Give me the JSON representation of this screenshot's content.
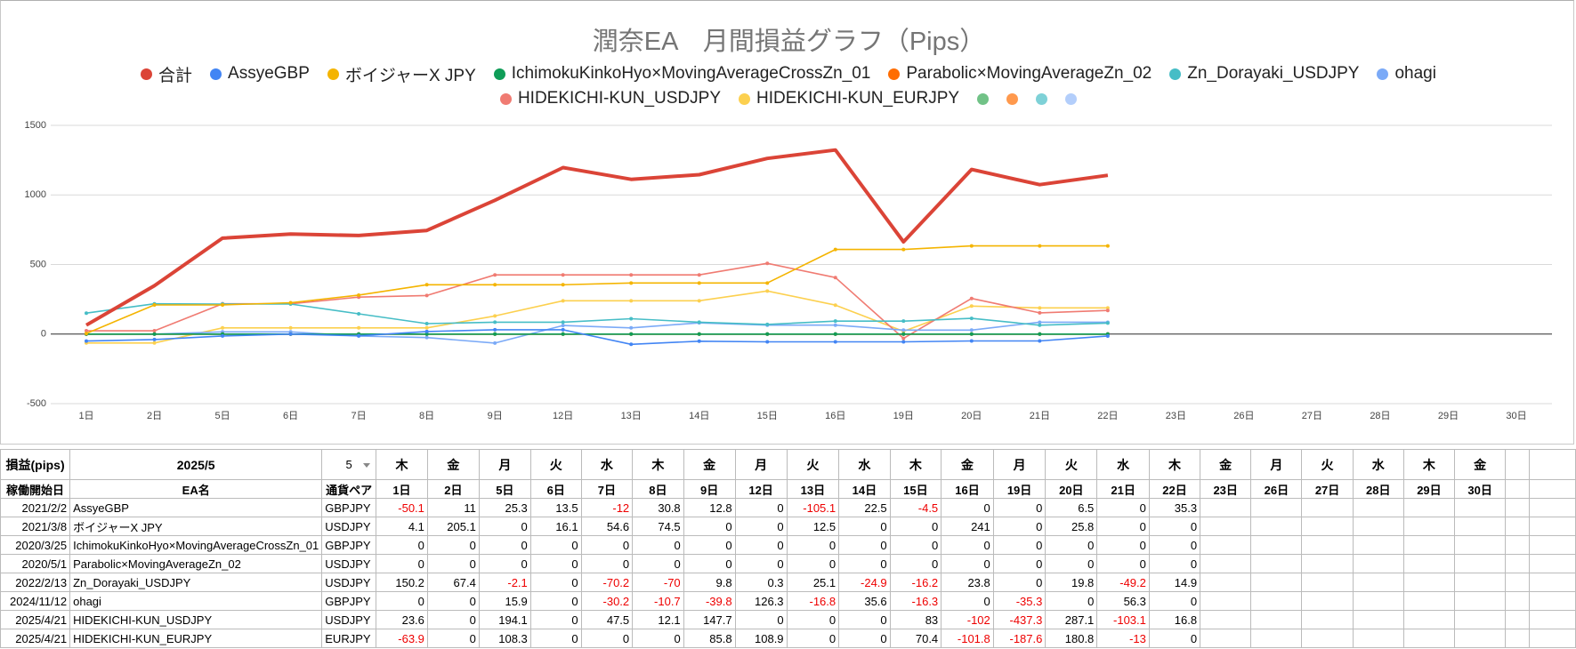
{
  "chart_data": {
    "type": "line",
    "title": "潤奈EA　月間損益グラフ（Pips）",
    "categories": [
      "1日",
      "2日",
      "5日",
      "6日",
      "7日",
      "8日",
      "9日",
      "12日",
      "13日",
      "14日",
      "15日",
      "16日",
      "19日",
      "20日",
      "21日",
      "22日",
      "23日",
      "26日",
      "27日",
      "28日",
      "29日",
      "30日"
    ],
    "ylim": [
      -500,
      1500
    ],
    "yticks": [
      -500,
      0,
      500,
      1000,
      1500
    ],
    "grid": true,
    "series": [
      {
        "name": "合計",
        "color": "#db4437",
        "width": 4,
        "values": [
          63.9,
          347.4,
          688.9,
          718.5,
          708.2,
          744.9,
          961.2,
          1196.7,
          1112.4,
          1145.6,
          1262,
          1323,
          662.8,
          1182.8,
          1073.8,
          1140.8,
          null,
          null,
          null,
          null,
          null,
          null
        ]
      },
      {
        "name": "AssyeGBP",
        "color": "#4285f4",
        "values": [
          -50.1,
          -39.1,
          -13.8,
          -0.3,
          -12.3,
          18.5,
          31.3,
          31.3,
          -73.8,
          -51.3,
          -55.8,
          -55.8,
          -55.8,
          -49.3,
          -49.3,
          -14,
          null,
          null,
          null,
          null,
          null,
          null
        ]
      },
      {
        "name": "ボイジャーX JPY",
        "color": "#f4b400",
        "values": [
          4.1,
          209.2,
          209.2,
          225.3,
          279.9,
          354.4,
          354.4,
          354.4,
          366.9,
          366.9,
          366.9,
          607.9,
          607.9,
          633.7,
          633.7,
          633.7,
          null,
          null,
          null,
          null,
          null,
          null
        ]
      },
      {
        "name": "IchimokuKinkoHyo×MovingAverageCrossZn_01",
        "color": "#0f9d58",
        "values": [
          0,
          0,
          0,
          0,
          0,
          0,
          0,
          0,
          0,
          0,
          0,
          0,
          0,
          0,
          0,
          0,
          null,
          null,
          null,
          null,
          null,
          null
        ]
      },
      {
        "name": "Parabolic×MovingAverageZn_02",
        "color": "#ff6d01",
        "values": [
          0,
          0,
          0,
          0,
          0,
          0,
          0,
          0,
          0,
          0,
          0,
          0,
          0,
          0,
          0,
          0,
          null,
          null,
          null,
          null,
          null,
          null
        ]
      },
      {
        "name": "Zn_Dorayaki_USDJPY",
        "color": "#46bdc6",
        "values": [
          150.2,
          217.6,
          215.5,
          215.5,
          145.3,
          75.3,
          85.1,
          85.4,
          110.5,
          85.6,
          69.4,
          93.2,
          93.2,
          113,
          63.8,
          78.7,
          null,
          null,
          null,
          null,
          null,
          null
        ]
      },
      {
        "name": "ohagi",
        "color": "#7baaf7",
        "values": [
          0,
          0,
          15.9,
          15.9,
          -14.3,
          -25,
          -64.8,
          61.5,
          44.7,
          80.3,
          64,
          64,
          28.7,
          28.7,
          85,
          85,
          null,
          null,
          null,
          null,
          null,
          null
        ]
      },
      {
        "name": "HIDEKICHI-KUN_USDJPY",
        "color": "#f07b72",
        "values": [
          23.6,
          23.6,
          217.7,
          217.7,
          265.2,
          277.3,
          425,
          425,
          425,
          425,
          508,
          406,
          -31.3,
          255.8,
          152.7,
          169.5,
          null,
          null,
          null,
          null,
          null,
          null
        ]
      },
      {
        "name": "HIDEKICHI-KUN_EURJPY",
        "color": "#fcd04f",
        "values": [
          -63.9,
          -63.9,
          44.4,
          44.4,
          44.4,
          44.4,
          130.2,
          239.1,
          239.1,
          239.1,
          309.5,
          207.7,
          20.1,
          200.9,
          187.9,
          187.9,
          null,
          null,
          null,
          null,
          null,
          null
        ]
      },
      {
        "name": null,
        "color": "#71c287",
        "values": [
          0,
          0,
          0,
          0,
          0,
          0,
          0,
          0,
          0,
          0,
          0,
          0,
          0,
          0,
          0,
          0,
          null,
          null,
          null,
          null,
          null,
          null
        ]
      },
      {
        "name": null,
        "color": "#ff994d",
        "values": [
          0,
          0,
          0,
          0,
          0,
          0,
          0,
          0,
          0,
          0,
          0,
          0,
          0,
          0,
          0,
          0,
          null,
          null,
          null,
          null,
          null,
          null
        ]
      },
      {
        "name": null,
        "color": "#7ed1d7",
        "values": [
          0,
          0,
          0,
          0,
          0,
          0,
          0,
          0,
          0,
          0,
          0,
          0,
          0,
          0,
          0,
          0,
          null,
          null,
          null,
          null,
          null,
          null
        ]
      },
      {
        "name": null,
        "color": "#b3cefb",
        "values": [
          0,
          0,
          0,
          0,
          0,
          0,
          0,
          0,
          0,
          0,
          0,
          0,
          0,
          0,
          0,
          0,
          null,
          null,
          null,
          null,
          null,
          null
        ]
      }
    ]
  },
  "table": {
    "header": [
      "損益(pips)",
      "2025/5",
      "5",
      "木",
      "金",
      "月",
      "火",
      "水",
      "木",
      "金",
      "月",
      "火",
      "水",
      "木",
      "金",
      "月",
      "火",
      "水",
      "木",
      "金",
      "月",
      "火",
      "水",
      "木",
      "金"
    ],
    "columns": [
      "稼働開始日",
      "EA名",
      "通貨ペア",
      "1日",
      "2日",
      "5日",
      "6日",
      "7日",
      "8日",
      "9日",
      "12日",
      "13日",
      "14日",
      "15日",
      "16日",
      "19日",
      "20日",
      "21日",
      "22日",
      "23日",
      "26日",
      "27日",
      "28日",
      "29日",
      "30日"
    ],
    "rows": [
      [
        "2021/2/2",
        "AssyeGBP",
        "GBPJPY",
        -50.1,
        11,
        25.3,
        13.5,
        -12,
        30.8,
        12.8,
        0,
        -105.1,
        22.5,
        -4.5,
        0,
        0,
        6.5,
        0,
        35.3
      ],
      [
        "2021/3/8",
        "ボイジャーX JPY",
        "USDJPY",
        4.1,
        205.1,
        0,
        16.1,
        54.6,
        74.5,
        0,
        0,
        12.5,
        0,
        0,
        241,
        0,
        25.8,
        0,
        0
      ],
      [
        "2020/3/25",
        "IchimokuKinkoHyo×MovingAverageCrossZn_01",
        "GBPJPY",
        0,
        0,
        0,
        0,
        0,
        0,
        0,
        0,
        0,
        0,
        0,
        0,
        0,
        0,
        0,
        0
      ],
      [
        "2020/5/1",
        "Parabolic×MovingAverageZn_02",
        "USDJPY",
        0,
        0,
        0,
        0,
        0,
        0,
        0,
        0,
        0,
        0,
        0,
        0,
        0,
        0,
        0,
        0
      ],
      [
        "2022/2/13",
        "Zn_Dorayaki_USDJPY",
        "USDJPY",
        150.2,
        67.4,
        -2.1,
        0,
        -70.2,
        -70,
        9.8,
        0.3,
        25.1,
        -24.9,
        -16.2,
        23.8,
        0,
        19.8,
        -49.2,
        14.9
      ],
      [
        "2024/11/12",
        "ohagi",
        "GBPJPY",
        0,
        0,
        15.9,
        0,
        -30.2,
        -10.7,
        -39.8,
        126.3,
        -16.8,
        35.6,
        -16.3,
        0,
        -35.3,
        0,
        56.3,
        0
      ],
      [
        "2025/4/21",
        "HIDEKICHI-KUN_USDJPY",
        "USDJPY",
        23.6,
        0,
        194.1,
        0,
        47.5,
        12.1,
        147.7,
        0,
        0,
        0,
        83,
        -102,
        -437.3,
        287.1,
        -103.1,
        16.8
      ],
      [
        "2025/4/21",
        "HIDEKICHI-KUN_EURJPY",
        "EURJPY",
        -63.9,
        0,
        108.3,
        0,
        0,
        0,
        85.8,
        108.9,
        0,
        0,
        70.4,
        -101.8,
        -187.6,
        180.8,
        -13,
        0
      ]
    ]
  }
}
